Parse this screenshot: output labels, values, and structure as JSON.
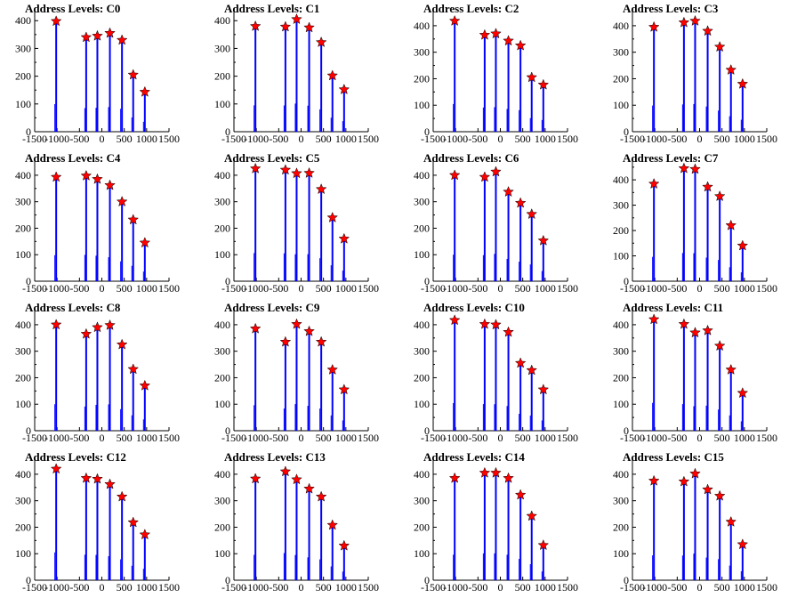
{
  "colors": {
    "histogram": "#0000ff",
    "marker": "#ff0000",
    "marker_edge": "#000000",
    "axis": "#000000"
  },
  "chart_data": [
    {
      "type": "bar",
      "title": "Address Levels: C0",
      "xlim": [
        -1500,
        1500
      ],
      "ylim": [
        0,
        420
      ],
      "xticks": [
        "-1500",
        "-1000",
        "-500",
        "0",
        "500",
        "1000",
        "1500"
      ],
      "yticks": [
        "0",
        "100",
        "200",
        "300",
        "400"
      ],
      "peaks": [
        {
          "x": -1020,
          "y": 398
        },
        {
          "x": -350,
          "y": 340
        },
        {
          "x": -100,
          "y": 345
        },
        {
          "x": 180,
          "y": 355
        },
        {
          "x": 450,
          "y": 330
        },
        {
          "x": 700,
          "y": 205
        },
        {
          "x": 960,
          "y": 143
        }
      ]
    },
    {
      "type": "bar",
      "title": "Address Levels: C1",
      "xlim": [
        -1500,
        1500
      ],
      "ylim": [
        0,
        420
      ],
      "xticks": [
        "-1500",
        "-1000",
        "-500",
        "0",
        "500",
        "1000",
        "1500"
      ],
      "yticks": [
        "0",
        "100",
        "200",
        "300",
        "400"
      ],
      "peaks": [
        {
          "x": -1020,
          "y": 380
        },
        {
          "x": -350,
          "y": 378
        },
        {
          "x": -100,
          "y": 405
        },
        {
          "x": 180,
          "y": 375
        },
        {
          "x": 450,
          "y": 322
        },
        {
          "x": 700,
          "y": 202
        },
        {
          "x": 960,
          "y": 152
        }
      ]
    },
    {
      "type": "bar",
      "title": "Address Levels: C2",
      "xlim": [
        -1500,
        1500
      ],
      "ylim": [
        0,
        440
      ],
      "xticks": [
        "-1500",
        "-1000",
        "-500",
        "0",
        "500",
        "1000",
        "1500"
      ],
      "yticks": [
        "0",
        "100",
        "200",
        "300",
        "400"
      ],
      "peaks": [
        {
          "x": -1020,
          "y": 418
        },
        {
          "x": -350,
          "y": 365
        },
        {
          "x": -100,
          "y": 370
        },
        {
          "x": 180,
          "y": 343
        },
        {
          "x": 450,
          "y": 325
        },
        {
          "x": 700,
          "y": 205
        },
        {
          "x": 960,
          "y": 177
        }
      ]
    },
    {
      "type": "bar",
      "title": "Address Levels: C3",
      "xlim": [
        -1500,
        1500
      ],
      "ylim": [
        0,
        440
      ],
      "xticks": [
        "-1500",
        "-1000",
        "-500",
        "0",
        "500",
        "1000",
        "1500"
      ],
      "yticks": [
        "0",
        "100",
        "200",
        "300",
        "400"
      ],
      "peaks": [
        {
          "x": -1020,
          "y": 395
        },
        {
          "x": -350,
          "y": 412
        },
        {
          "x": -100,
          "y": 418
        },
        {
          "x": 180,
          "y": 380
        },
        {
          "x": 450,
          "y": 320
        },
        {
          "x": 700,
          "y": 233
        },
        {
          "x": 960,
          "y": 180
        }
      ]
    },
    {
      "type": "bar",
      "title": "Address Levels: C4",
      "xlim": [
        -1500,
        1500
      ],
      "ylim": [
        0,
        440
      ],
      "xticks": [
        "-1500",
        "-1000",
        "-500",
        "0",
        "500",
        "1000",
        "1500"
      ],
      "yticks": [
        "0",
        "100",
        "200",
        "300",
        "400"
      ],
      "peaks": [
        {
          "x": -1020,
          "y": 393
        },
        {
          "x": -350,
          "y": 398
        },
        {
          "x": -100,
          "y": 385
        },
        {
          "x": 180,
          "y": 362
        },
        {
          "x": 450,
          "y": 300
        },
        {
          "x": 700,
          "y": 232
        },
        {
          "x": 960,
          "y": 145
        }
      ]
    },
    {
      "type": "bar",
      "title": "Address Levels: C5",
      "xlim": [
        -1500,
        1500
      ],
      "ylim": [
        0,
        440
      ],
      "xticks": [
        "-1500",
        "-1000",
        "-500",
        "0",
        "500",
        "1000",
        "1500"
      ],
      "yticks": [
        "0",
        "100",
        "200",
        "300",
        "400"
      ],
      "peaks": [
        {
          "x": -1020,
          "y": 425
        },
        {
          "x": -350,
          "y": 420
        },
        {
          "x": -100,
          "y": 407
        },
        {
          "x": 180,
          "y": 408
        },
        {
          "x": 450,
          "y": 347
        },
        {
          "x": 700,
          "y": 240
        },
        {
          "x": 960,
          "y": 160
        }
      ]
    },
    {
      "type": "bar",
      "title": "Address Levels: C6",
      "xlim": [
        -1500,
        1500
      ],
      "ylim": [
        0,
        440
      ],
      "xticks": [
        "-1500",
        "-1000",
        "-500",
        "0",
        "500",
        "1000",
        "1500"
      ],
      "yticks": [
        "0",
        "100",
        "200",
        "300",
        "400"
      ],
      "peaks": [
        {
          "x": -1020,
          "y": 400
        },
        {
          "x": -350,
          "y": 393
        },
        {
          "x": -100,
          "y": 413
        },
        {
          "x": 180,
          "y": 337
        },
        {
          "x": 450,
          "y": 295
        },
        {
          "x": 700,
          "y": 253
        },
        {
          "x": 960,
          "y": 153
        }
      ]
    },
    {
      "type": "bar",
      "title": "Address Levels: C7",
      "xlim": [
        -1500,
        1500
      ],
      "ylim": [
        0,
        460
      ],
      "xticks": [
        "-1500",
        "-1000",
        "-500",
        "0",
        "500",
        "1000",
        "1500"
      ],
      "yticks": [
        "0",
        "100",
        "200",
        "300",
        "400"
      ],
      "peaks": [
        {
          "x": -1020,
          "y": 384
        },
        {
          "x": -350,
          "y": 445
        },
        {
          "x": -100,
          "y": 442
        },
        {
          "x": 180,
          "y": 372
        },
        {
          "x": 450,
          "y": 335
        },
        {
          "x": 700,
          "y": 220
        },
        {
          "x": 960,
          "y": 140
        }
      ]
    },
    {
      "type": "bar",
      "title": "Address Levels: C8",
      "xlim": [
        -1500,
        1500
      ],
      "ylim": [
        0,
        440
      ],
      "xticks": [
        "-1500",
        "-1000",
        "-500",
        "0",
        "500",
        "1000",
        "1500"
      ],
      "yticks": [
        "0",
        "100",
        "200",
        "300",
        "400"
      ],
      "peaks": [
        {
          "x": -1020,
          "y": 400
        },
        {
          "x": -350,
          "y": 365
        },
        {
          "x": -100,
          "y": 390
        },
        {
          "x": 180,
          "y": 398
        },
        {
          "x": 450,
          "y": 325
        },
        {
          "x": 700,
          "y": 232
        },
        {
          "x": 960,
          "y": 170
        }
      ]
    },
    {
      "type": "bar",
      "title": "Address Levels: C9",
      "xlim": [
        -1500,
        1500
      ],
      "ylim": [
        0,
        440
      ],
      "xticks": [
        "-1500",
        "-1000",
        "-500",
        "0",
        "500",
        "1000",
        "1500"
      ],
      "yticks": [
        "0",
        "100",
        "200",
        "300",
        "400"
      ],
      "peaks": [
        {
          "x": -1020,
          "y": 385
        },
        {
          "x": -350,
          "y": 335
        },
        {
          "x": -100,
          "y": 402
        },
        {
          "x": 180,
          "y": 375
        },
        {
          "x": 450,
          "y": 335
        },
        {
          "x": 700,
          "y": 230
        },
        {
          "x": 960,
          "y": 155
        }
      ]
    },
    {
      "type": "bar",
      "title": "Address Levels: C10",
      "xlim": [
        -1500,
        1500
      ],
      "ylim": [
        0,
        440
      ],
      "xticks": [
        "-1500",
        "-1000",
        "-500",
        "0",
        "500",
        "1000",
        "1500"
      ],
      "yticks": [
        "0",
        "100",
        "200",
        "300",
        "400"
      ],
      "peaks": [
        {
          "x": -1020,
          "y": 417
        },
        {
          "x": -350,
          "y": 402
        },
        {
          "x": -100,
          "y": 400
        },
        {
          "x": 180,
          "y": 372
        },
        {
          "x": 450,
          "y": 255
        },
        {
          "x": 700,
          "y": 228
        },
        {
          "x": 960,
          "y": 155
        }
      ]
    },
    {
      "type": "bar",
      "title": "Address Levels: C11",
      "xlim": [
        -1500,
        1500
      ],
      "ylim": [
        0,
        440
      ],
      "xticks": [
        "-1500",
        "-1000",
        "-500",
        "0",
        "500",
        "1000",
        "1500"
      ],
      "yticks": [
        "0",
        "100",
        "200",
        "300",
        "400"
      ],
      "peaks": [
        {
          "x": -1020,
          "y": 420
        },
        {
          "x": -350,
          "y": 402
        },
        {
          "x": -100,
          "y": 370
        },
        {
          "x": 180,
          "y": 378
        },
        {
          "x": 450,
          "y": 320
        },
        {
          "x": 700,
          "y": 230
        },
        {
          "x": 960,
          "y": 142
        }
      ]
    },
    {
      "type": "bar",
      "title": "Address Levels: C12",
      "xlim": [
        -1500,
        1500
      ],
      "ylim": [
        0,
        440
      ],
      "xticks": [
        "-1500",
        "-1000",
        "-500",
        "0",
        "500",
        "1000",
        "1500"
      ],
      "yticks": [
        "0",
        "100",
        "200",
        "300",
        "400"
      ],
      "peaks": [
        {
          "x": -1020,
          "y": 420
        },
        {
          "x": -350,
          "y": 385
        },
        {
          "x": -100,
          "y": 382
        },
        {
          "x": 180,
          "y": 362
        },
        {
          "x": 450,
          "y": 315
        },
        {
          "x": 700,
          "y": 218
        },
        {
          "x": 960,
          "y": 172
        }
      ]
    },
    {
      "type": "bar",
      "title": "Address Levels: C13",
      "xlim": [
        -1500,
        1500
      ],
      "ylim": [
        0,
        440
      ],
      "xticks": [
        "-1500",
        "-1000",
        "-500",
        "0",
        "500",
        "1000",
        "1500"
      ],
      "yticks": [
        "0",
        "100",
        "200",
        "300",
        "400"
      ],
      "peaks": [
        {
          "x": -1020,
          "y": 383
        },
        {
          "x": -350,
          "y": 410
        },
        {
          "x": -100,
          "y": 380
        },
        {
          "x": 180,
          "y": 345
        },
        {
          "x": 450,
          "y": 315
        },
        {
          "x": 700,
          "y": 208
        },
        {
          "x": 960,
          "y": 130
        }
      ]
    },
    {
      "type": "bar",
      "title": "Address Levels: C14",
      "xlim": [
        -1500,
        1500
      ],
      "ylim": [
        0,
        440
      ],
      "xticks": [
        "-1500",
        "-1000",
        "-500",
        "0",
        "500",
        "1000",
        "1500"
      ],
      "yticks": [
        "0",
        "100",
        "200",
        "300",
        "400"
      ],
      "peaks": [
        {
          "x": -1020,
          "y": 385
        },
        {
          "x": -350,
          "y": 405
        },
        {
          "x": -100,
          "y": 405
        },
        {
          "x": 180,
          "y": 385
        },
        {
          "x": 450,
          "y": 322
        },
        {
          "x": 700,
          "y": 242
        },
        {
          "x": 960,
          "y": 132
        }
      ]
    },
    {
      "type": "bar",
      "title": "Address Levels: C15",
      "xlim": [
        -1500,
        1500
      ],
      "ylim": [
        0,
        440
      ],
      "xticks": [
        "-1500",
        "-1000",
        "-500",
        "0",
        "500",
        "1000",
        "1500"
      ],
      "yticks": [
        "0",
        "100",
        "200",
        "300",
        "400"
      ],
      "peaks": [
        {
          "x": -1020,
          "y": 375
        },
        {
          "x": -350,
          "y": 372
        },
        {
          "x": -100,
          "y": 402
        },
        {
          "x": 180,
          "y": 342
        },
        {
          "x": 450,
          "y": 318
        },
        {
          "x": 700,
          "y": 220
        },
        {
          "x": 960,
          "y": 135
        }
      ]
    }
  ]
}
